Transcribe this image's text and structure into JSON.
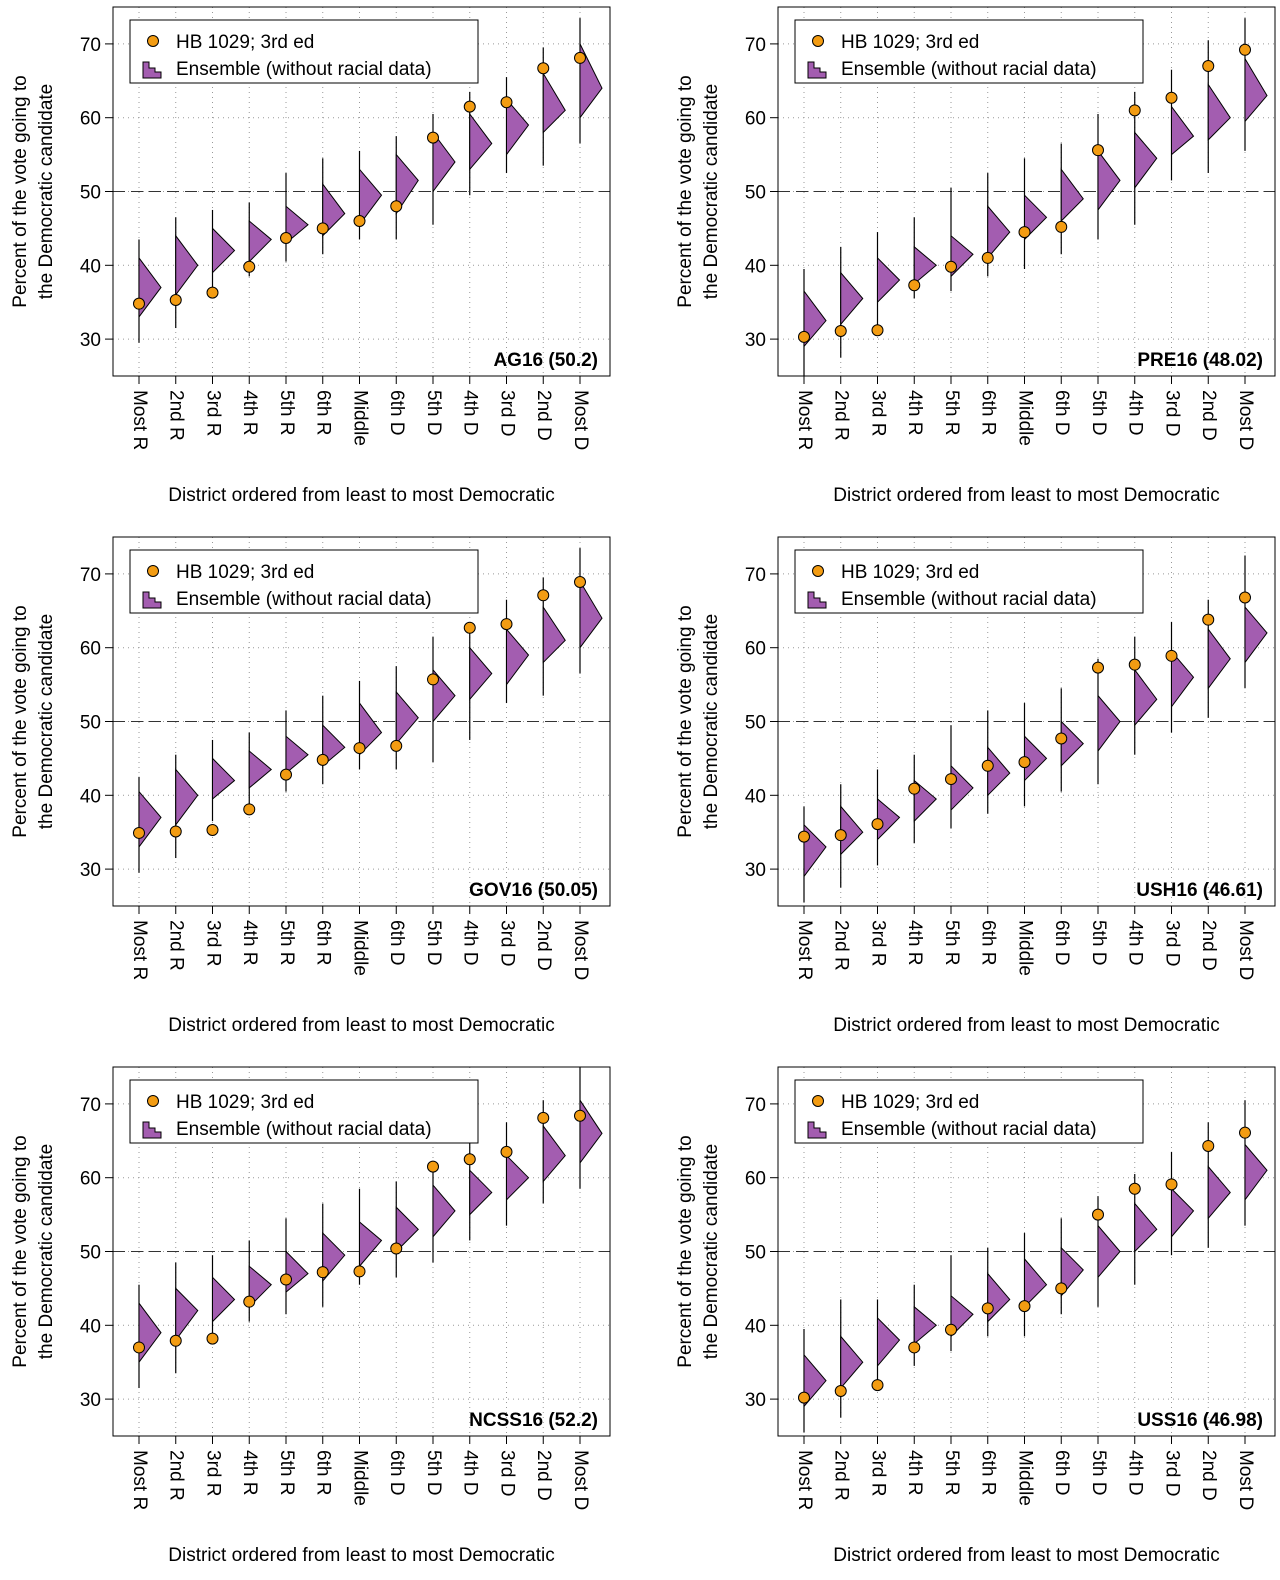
{
  "chart_data": [
    {
      "type": "ensemble",
      "label": "AG16 (50.2)",
      "xlabel": "District ordered from least to most Democratic",
      "ylabel": [
        "Percent of the vote going to",
        "the Democratic candidate"
      ],
      "categories": [
        "Most R",
        "2nd R",
        "3rd R",
        "4th R",
        "5th R",
        "6th R",
        "Middle",
        "6th D",
        "5th D",
        "4th D",
        "3rd D",
        "2nd D",
        "Most D"
      ],
      "ylim": [
        25,
        75
      ],
      "yticks": [
        30,
        40,
        50,
        60,
        70
      ],
      "hline": 50,
      "grid": true,
      "legend": "upper left",
      "series": [
        {
          "name": "HB 1029; 3rd ed",
          "color": "#f39c12",
          "values": [
            34.8,
            35.3,
            36.3,
            39.8,
            43.7,
            45.0,
            46.0,
            48.0,
            57.3,
            61.5,
            62.1,
            66.7,
            68.1
          ]
        },
        {
          "name": "Ensemble (without racial data)",
          "color": "#a35db0",
          "min": [
            29.5,
            31.5,
            36,
            38.5,
            40.5,
            41.5,
            43.5,
            43.5,
            45.5,
            49.5,
            52.5,
            53.5,
            56.5
          ],
          "q1": [
            33,
            36,
            39,
            40.5,
            43,
            44,
            45.5,
            47,
            50,
            53,
            55,
            58,
            60
          ],
          "median": [
            37,
            40,
            42,
            43.5,
            45.5,
            47,
            49.5,
            51.5,
            54,
            56.5,
            59,
            61,
            64
          ],
          "q3": [
            41,
            44,
            45,
            46,
            48,
            51,
            53,
            55,
            58,
            60.5,
            62.5,
            66,
            70
          ],
          "max": [
            43.5,
            46.5,
            47.5,
            48.5,
            52.5,
            54.5,
            55.5,
            57.5,
            60.5,
            63.5,
            65.5,
            69.5,
            73.5
          ]
        }
      ]
    },
    {
      "type": "ensemble",
      "label": "PRE16 (48.02)",
      "xlabel": "District ordered from least to most Democratic",
      "ylabel": [
        "Percent of the vote going to",
        "the Democratic candidate"
      ],
      "categories": [
        "Most R",
        "2nd R",
        "3rd R",
        "4th R",
        "5th R",
        "6th R",
        "Middle",
        "6th D",
        "5th D",
        "4th D",
        "3rd D",
        "2nd D",
        "Most D"
      ],
      "ylim": [
        25,
        75
      ],
      "yticks": [
        30,
        40,
        50,
        60,
        70
      ],
      "hline": 50,
      "grid": true,
      "legend": "upper left",
      "series": [
        {
          "name": "HB 1029; 3rd ed",
          "color": "#f39c12",
          "values": [
            30.3,
            31.1,
            31.2,
            37.3,
            39.8,
            41.0,
            44.5,
            45.2,
            55.6,
            61.0,
            62.7,
            67.0,
            69.2
          ]
        },
        {
          "name": "Ensemble (without racial data)",
          "color": "#a35db0",
          "min": [
            25,
            27.5,
            31,
            35.5,
            36.5,
            38.5,
            39.5,
            41.5,
            43.5,
            45.5,
            51.5,
            52.5,
            55.5
          ],
          "q1": [
            29,
            32,
            35,
            37.5,
            38.5,
            41,
            43.5,
            46,
            47.5,
            50.5,
            55,
            57,
            59.5
          ],
          "median": [
            32.5,
            35.5,
            38,
            40,
            41.5,
            44.5,
            46.5,
            49,
            51.5,
            54.5,
            57.5,
            60,
            63
          ],
          "q3": [
            36.5,
            39,
            41,
            42.5,
            44,
            48,
            49.5,
            53,
            55.5,
            58,
            61.5,
            64.5,
            68
          ],
          "max": [
            39.5,
            42.5,
            44.5,
            46.5,
            50.5,
            52.5,
            54.5,
            56.5,
            60.5,
            63.5,
            66.5,
            70.5,
            73.5
          ]
        }
      ]
    },
    {
      "type": "ensemble",
      "label": "GOV16 (50.05)",
      "xlabel": "District ordered from least to most Democratic",
      "ylabel": [
        "Percent of the vote going to",
        "the Democratic candidate"
      ],
      "categories": [
        "Most R",
        "2nd R",
        "3rd R",
        "4th R",
        "5th R",
        "6th R",
        "Middle",
        "6th D",
        "5th D",
        "4th D",
        "3rd D",
        "2nd D",
        "Most D"
      ],
      "ylim": [
        25,
        75
      ],
      "yticks": [
        30,
        40,
        50,
        60,
        70
      ],
      "hline": 50,
      "grid": true,
      "legend": "upper left",
      "series": [
        {
          "name": "HB 1029; 3rd ed",
          "color": "#f39c12",
          "values": [
            34.9,
            35.1,
            35.3,
            38.1,
            42.8,
            44.8,
            46.4,
            46.7,
            55.7,
            62.7,
            63.2,
            67.1,
            68.9
          ]
        },
        {
          "name": "Ensemble (without racial data)",
          "color": "#a35db0",
          "min": [
            29.5,
            31.5,
            36.5,
            38.5,
            40.5,
            41.5,
            43.5,
            43.5,
            44.5,
            47.5,
            52.5,
            53.5,
            56.5
          ],
          "q1": [
            33,
            36,
            39.5,
            41,
            43,
            44,
            45.5,
            47,
            50,
            53,
            55,
            58,
            60
          ],
          "median": [
            37,
            40,
            42,
            43.5,
            45.5,
            46.5,
            48.5,
            50.5,
            53.5,
            56.5,
            59,
            61,
            64
          ],
          "q3": [
            40.5,
            43.5,
            45,
            46,
            48,
            49.5,
            52.5,
            54,
            57,
            60,
            62.5,
            65.5,
            69
          ],
          "max": [
            42.5,
            45.5,
            47.5,
            48.5,
            51.5,
            53.5,
            55.5,
            57.5,
            61.5,
            63,
            66.5,
            69.5,
            73.5
          ]
        }
      ]
    },
    {
      "type": "ensemble",
      "label": "USH16 (46.61)",
      "xlabel": "District ordered from least to most Democratic",
      "ylabel": [
        "Percent of the vote going to",
        "the Democratic candidate"
      ],
      "categories": [
        "Most R",
        "2nd R",
        "3rd R",
        "4th R",
        "5th R",
        "6th R",
        "Middle",
        "6th D",
        "5th D",
        "4th D",
        "3rd D",
        "2nd D",
        "Most D"
      ],
      "ylim": [
        25,
        75
      ],
      "yticks": [
        30,
        40,
        50,
        60,
        70
      ],
      "hline": 50,
      "grid": true,
      "legend": "upper left",
      "series": [
        {
          "name": "HB 1029; 3rd ed",
          "color": "#f39c12",
          "values": [
            34.4,
            34.6,
            36.1,
            40.9,
            42.2,
            44.0,
            44.5,
            47.7,
            57.3,
            57.7,
            58.9,
            63.8,
            66.8
          ]
        },
        {
          "name": "Ensemble (without racial data)",
          "color": "#a35db0",
          "min": [
            25.5,
            27.5,
            30.5,
            33.5,
            35.5,
            37.5,
            38.5,
            40.5,
            41.5,
            45.5,
            48.5,
            50.5,
            54.5
          ],
          "q1": [
            29,
            32,
            34,
            36.5,
            38,
            40,
            42,
            44,
            46,
            49.5,
            52,
            54.5,
            58
          ],
          "median": [
            33,
            35,
            37,
            39.5,
            41,
            43,
            45,
            47,
            50,
            53,
            56,
            58.5,
            62
          ],
          "q3": [
            36,
            38.5,
            39.5,
            42,
            44,
            46.5,
            48,
            50,
            53.5,
            57,
            59.5,
            62.5,
            65.5
          ],
          "max": [
            38.5,
            41.5,
            43.5,
            45.5,
            49.5,
            51.5,
            52.5,
            54.5,
            58.5,
            61.5,
            63.5,
            66.5,
            72.5
          ]
        }
      ]
    },
    {
      "type": "ensemble",
      "label": "NCSS16 (52.2)",
      "xlabel": "District ordered from least to most Democratic",
      "ylabel": [
        "Percent of the vote going to",
        "the Democratic candidate"
      ],
      "categories": [
        "Most R",
        "2nd R",
        "3rd R",
        "4th R",
        "5th R",
        "6th R",
        "Middle",
        "6th D",
        "5th D",
        "4th D",
        "3rd D",
        "2nd D",
        "Most D"
      ],
      "ylim": [
        25,
        75
      ],
      "yticks": [
        30,
        40,
        50,
        60,
        70
      ],
      "hline": 50,
      "grid": true,
      "legend": "upper left",
      "series": [
        {
          "name": "HB 1029; 3rd ed",
          "color": "#f39c12",
          "values": [
            37.0,
            37.9,
            38.2,
            43.2,
            46.2,
            47.2,
            47.3,
            50.4,
            61.5,
            62.5,
            63.5,
            68.1,
            68.4
          ]
        },
        {
          "name": "Ensemble (without racial data)",
          "color": "#a35db0",
          "min": [
            31.5,
            33.5,
            37.5,
            40.5,
            41.5,
            42.5,
            45.5,
            46.5,
            48.5,
            51.5,
            53.5,
            56.5,
            58.5
          ],
          "q1": [
            35,
            38,
            40.5,
            42.5,
            44.5,
            46,
            48,
            50,
            52,
            55,
            57,
            59.5,
            62
          ],
          "median": [
            39,
            42,
            43.5,
            45.5,
            47,
            49.5,
            51.5,
            53,
            55.5,
            58,
            60,
            63,
            66
          ],
          "q3": [
            43,
            45,
            46.5,
            48,
            50,
            52.5,
            54,
            56,
            59,
            61,
            63,
            67,
            70.5
          ],
          "max": [
            45.5,
            48.5,
            49.5,
            51.5,
            54.5,
            56.5,
            58.5,
            59.5,
            62,
            65.5,
            67.5,
            70.5,
            75
          ]
        }
      ]
    },
    {
      "type": "ensemble",
      "label": "USS16 (46.98)",
      "xlabel": "District ordered from least to most Democratic",
      "ylabel": [
        "Percent of the vote going to",
        "the Democratic candidate"
      ],
      "categories": [
        "Most R",
        "2nd R",
        "3rd R",
        "4th R",
        "5th R",
        "6th R",
        "Middle",
        "6th D",
        "5th D",
        "4th D",
        "3rd D",
        "2nd D",
        "Most D"
      ],
      "ylim": [
        25,
        75
      ],
      "yticks": [
        30,
        40,
        50,
        60,
        70
      ],
      "hline": 50,
      "grid": true,
      "legend": "upper left",
      "series": [
        {
          "name": "HB 1029; 3rd ed",
          "color": "#f39c12",
          "values": [
            30.2,
            31.1,
            31.9,
            37.0,
            39.4,
            42.3,
            42.6,
            45.0,
            55.0,
            58.5,
            59.1,
            64.3,
            66.1
          ]
        },
        {
          "name": "Ensemble (without racial data)",
          "color": "#a35db0",
          "min": [
            25.5,
            27.5,
            31.5,
            34.5,
            36.5,
            38.5,
            38.5,
            41.5,
            42.5,
            45.5,
            49.5,
            50.5,
            53.5
          ],
          "q1": [
            29,
            31.5,
            34.5,
            37.5,
            38.5,
            40.5,
            42.5,
            44,
            46.5,
            50,
            52,
            54.5,
            57
          ],
          "median": [
            32.5,
            35,
            38,
            40,
            41.5,
            43.5,
            45.5,
            47.5,
            50,
            53,
            55.5,
            58,
            61
          ],
          "q3": [
            36,
            38.5,
            41,
            42.5,
            44,
            47,
            49,
            50.5,
            53.5,
            56.5,
            58.5,
            61.5,
            64.5
          ],
          "max": [
            39.5,
            43.5,
            43.5,
            45.5,
            49.5,
            50.5,
            52.5,
            54.5,
            57.5,
            60.5,
            63.5,
            67.5,
            70.5
          ]
        }
      ]
    }
  ]
}
